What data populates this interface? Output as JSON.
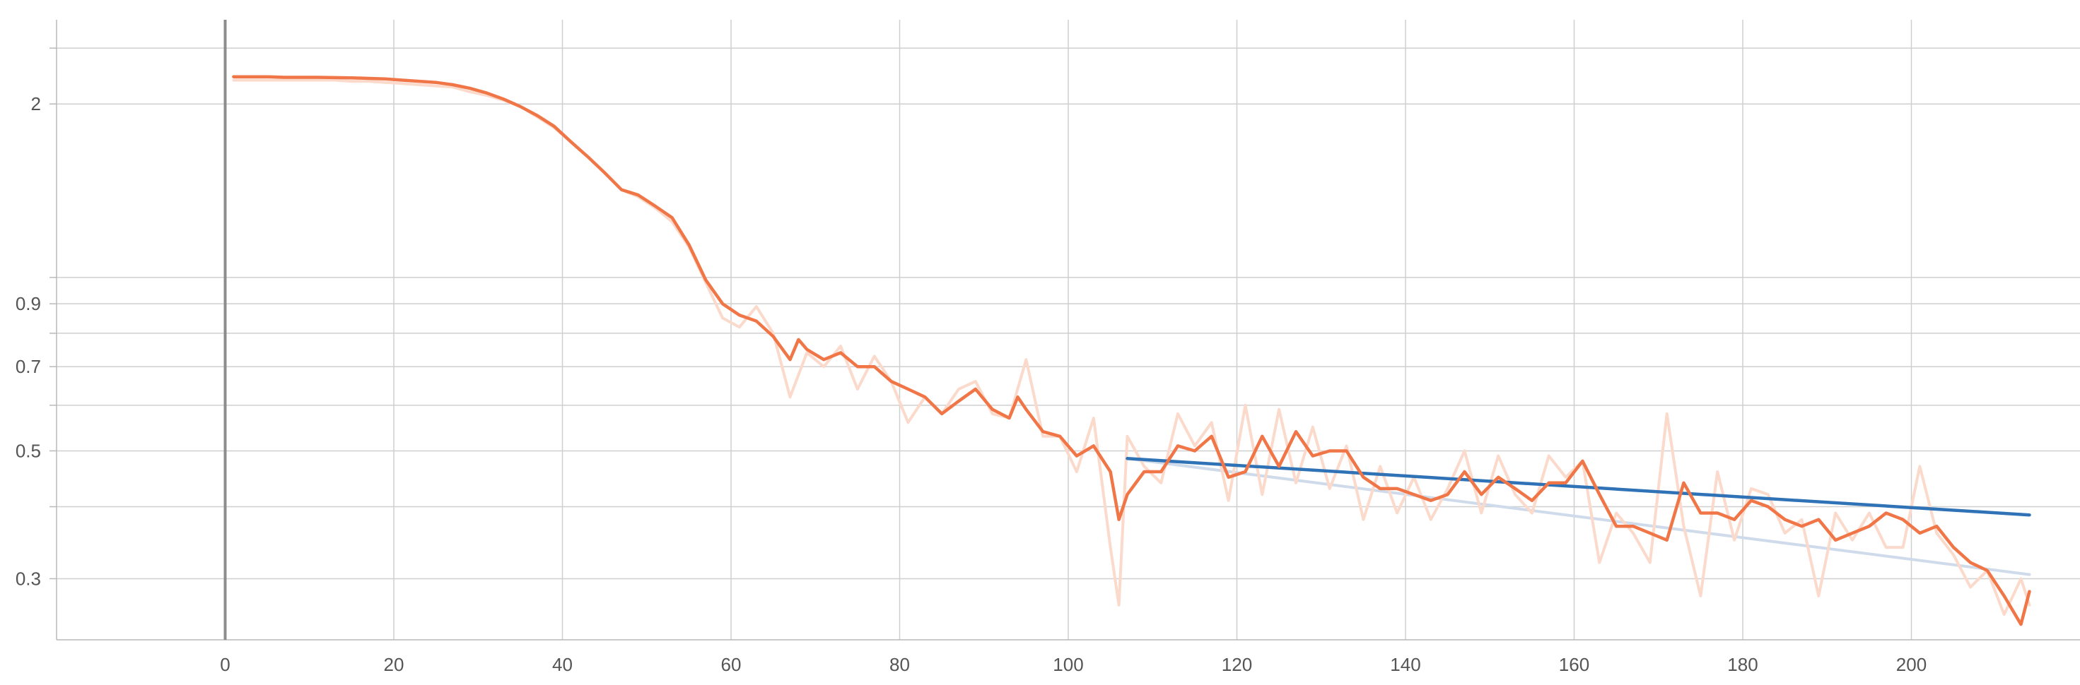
{
  "chart_data": {
    "type": "line",
    "title": "",
    "xlabel": "",
    "ylabel": "",
    "xlim": [
      -20,
      220
    ],
    "ylim": [
      0.235,
      2.8
    ],
    "y_scale": "log",
    "grid": true,
    "legend": "none",
    "x_ticks": [
      0,
      20,
      40,
      60,
      80,
      100,
      120,
      140,
      160,
      180,
      200
    ],
    "x_tick_labels": [
      "0",
      "20",
      "40",
      "60",
      "80",
      "100",
      "120",
      "140",
      "160",
      "180",
      "200"
    ],
    "y_ticks": [
      2,
      0.9,
      0.7,
      0.5,
      0.3
    ],
    "y_tick_labels": [
      "2",
      "0.9",
      "0.7",
      "0.5",
      "0.3"
    ],
    "y_extra_gridlines": [
      2.5,
      1,
      0.8,
      0.6,
      0.4
    ],
    "vertical_marker_x": 0,
    "colors": {
      "loss_smoothed": "#f07647",
      "loss_raw": "#fbd9cb",
      "trend_smoothed": "#2f72b6",
      "trend_raw": "#cfdbea",
      "marker": "#8c8c8c"
    },
    "series": [
      {
        "role": "loss_raw",
        "x": [
          1,
          3,
          5,
          7,
          9,
          11,
          13,
          15,
          17,
          19,
          21,
          23,
          25,
          27,
          29,
          31,
          33,
          35,
          37,
          39,
          41,
          43,
          45,
          47,
          49,
          51,
          53,
          55,
          57,
          59,
          61,
          63,
          65,
          67,
          69,
          71,
          73,
          75,
          77,
          79,
          81,
          83,
          85,
          87,
          89,
          91,
          93,
          95,
          97,
          99,
          101,
          103,
          105,
          106,
          107,
          109,
          111,
          113,
          115,
          117,
          119,
          121,
          123,
          125,
          127,
          129,
          131,
          133,
          135,
          137,
          139,
          141,
          143,
          145,
          147,
          149,
          151,
          153,
          155,
          157,
          159,
          161,
          163,
          165,
          167,
          169,
          171,
          173,
          175,
          177,
          179,
          181,
          183,
          185,
          187,
          189,
          191,
          193,
          195,
          197,
          199,
          201,
          203,
          205,
          207,
          209,
          211,
          213,
          214
        ],
        "values": [
          2.2,
          2.2,
          2.2,
          2.2,
          2.2,
          2.2,
          2.2,
          2.19,
          2.19,
          2.18,
          2.17,
          2.16,
          2.15,
          2.14,
          2.1,
          2.07,
          2.03,
          1.98,
          1.9,
          1.82,
          1.72,
          1.62,
          1.52,
          1.42,
          1.38,
          1.32,
          1.25,
          1.13,
          0.98,
          0.85,
          0.82,
          0.89,
          0.8,
          0.62,
          0.74,
          0.7,
          0.76,
          0.64,
          0.73,
          0.66,
          0.56,
          0.62,
          0.58,
          0.64,
          0.66,
          0.58,
          0.57,
          0.72,
          0.53,
          0.53,
          0.46,
          0.57,
          0.34,
          0.27,
          0.53,
          0.47,
          0.44,
          0.58,
          0.51,
          0.56,
          0.41,
          0.6,
          0.42,
          0.59,
          0.44,
          0.55,
          0.43,
          0.51,
          0.38,
          0.47,
          0.39,
          0.45,
          0.38,
          0.43,
          0.5,
          0.39,
          0.49,
          0.42,
          0.39,
          0.49,
          0.45,
          0.48,
          0.32,
          0.39,
          0.36,
          0.32,
          0.58,
          0.37,
          0.28,
          0.46,
          0.35,
          0.43,
          0.42,
          0.36,
          0.38,
          0.28,
          0.39,
          0.35,
          0.39,
          0.34,
          0.34,
          0.47,
          0.36,
          0.33,
          0.29,
          0.31,
          0.26,
          0.3,
          0.27
        ]
      },
      {
        "role": "loss_smoothed",
        "x": [
          1,
          3,
          5,
          7,
          9,
          11,
          13,
          15,
          17,
          19,
          21,
          23,
          25,
          27,
          29,
          31,
          33,
          35,
          37,
          39,
          41,
          43,
          45,
          47,
          49,
          51,
          53,
          55,
          57,
          59,
          61,
          63,
          65,
          67,
          68,
          69,
          71,
          73,
          75,
          77,
          79,
          81,
          83,
          85,
          87,
          89,
          91,
          93,
          94,
          95,
          97,
          99,
          101,
          103,
          105,
          106,
          107,
          109,
          111,
          113,
          115,
          117,
          119,
          121,
          123,
          125,
          127,
          129,
          131,
          133,
          135,
          137,
          139,
          141,
          143,
          145,
          147,
          149,
          151,
          153,
          155,
          157,
          159,
          161,
          163,
          165,
          167,
          169,
          171,
          173,
          175,
          177,
          179,
          181,
          183,
          185,
          187,
          189,
          191,
          193,
          195,
          197,
          199,
          201,
          203,
          205,
          207,
          209,
          211,
          213,
          214
        ],
        "values": [
          2.23,
          2.23,
          2.23,
          2.225,
          2.225,
          2.225,
          2.222,
          2.22,
          2.215,
          2.21,
          2.2,
          2.19,
          2.18,
          2.16,
          2.13,
          2.09,
          2.04,
          1.98,
          1.91,
          1.83,
          1.72,
          1.62,
          1.52,
          1.42,
          1.39,
          1.33,
          1.27,
          1.14,
          0.99,
          0.9,
          0.86,
          0.84,
          0.79,
          0.72,
          0.78,
          0.75,
          0.72,
          0.74,
          0.7,
          0.7,
          0.66,
          0.64,
          0.62,
          0.58,
          0.61,
          0.64,
          0.59,
          0.57,
          0.62,
          0.59,
          0.54,
          0.53,
          0.49,
          0.51,
          0.46,
          0.38,
          0.42,
          0.46,
          0.46,
          0.51,
          0.5,
          0.53,
          0.45,
          0.46,
          0.53,
          0.47,
          0.54,
          0.49,
          0.5,
          0.5,
          0.45,
          0.43,
          0.43,
          0.42,
          0.41,
          0.42,
          0.46,
          0.42,
          0.45,
          0.43,
          0.41,
          0.44,
          0.44,
          0.48,
          0.42,
          0.37,
          0.37,
          0.36,
          0.35,
          0.44,
          0.39,
          0.39,
          0.38,
          0.41,
          0.4,
          0.38,
          0.37,
          0.38,
          0.35,
          0.36,
          0.37,
          0.39,
          0.38,
          0.36,
          0.37,
          0.34,
          0.32,
          0.31,
          0.28,
          0.25,
          0.285
        ]
      },
      {
        "role": "trend_raw",
        "x": [
          107,
          214
        ],
        "values": [
          0.485,
          0.305
        ]
      },
      {
        "role": "trend_smoothed",
        "x": [
          107,
          214
        ],
        "values": [
          0.485,
          0.387
        ]
      }
    ]
  }
}
